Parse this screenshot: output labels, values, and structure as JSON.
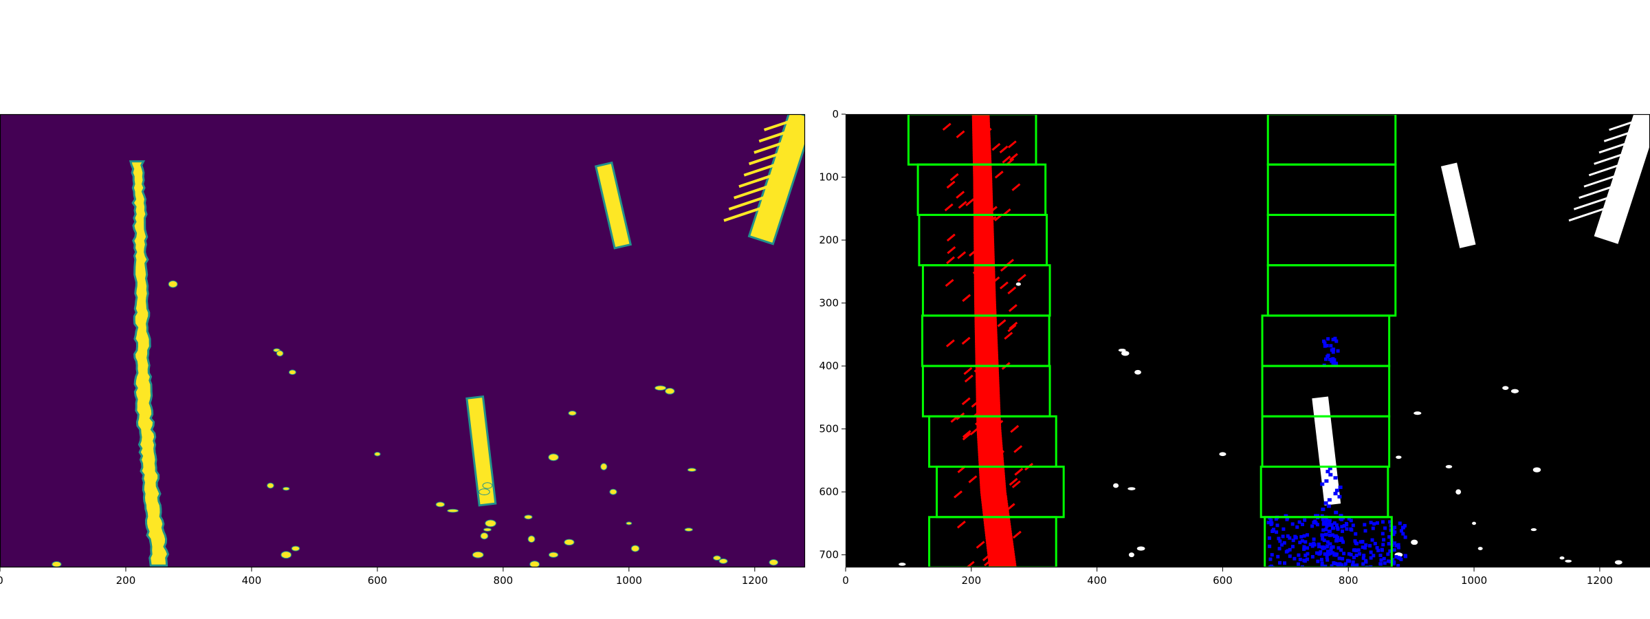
{
  "chart_data": [
    {
      "type": "heatmap",
      "description": "binary warped lane mask (viridis colormap)",
      "colormap": {
        "background": "#440154",
        "foreground": "#fde725",
        "edge": "#21918c"
      },
      "xlim": [
        0,
        1280
      ],
      "ylim": [
        720,
        0
      ],
      "x_ticks": [
        0,
        200,
        400,
        600,
        800,
        1000,
        1200
      ],
      "y_ticks": [],
      "left_lane_center_x": [
        [
          75,
          218
        ],
        [
          150,
          222
        ],
        [
          300,
          225
        ],
        [
          450,
          228
        ],
        [
          600,
          240
        ],
        [
          720,
          255
        ]
      ],
      "right_blobs": [
        {
          "type": "stripe",
          "points": [
            [
              80,
              960
            ],
            [
              210,
              990
            ]
          ]
        },
        {
          "type": "stripe",
          "points": [
            [
              450,
              755
            ],
            [
              620,
              775
            ]
          ]
        },
        {
          "type": "stripe",
          "points": [
            [
              0,
              1275
            ],
            [
              200,
              1210
            ]
          ]
        }
      ]
    },
    {
      "type": "heatmap",
      "description": "sliding window lane search: left lane pixels red, right lane pixels blue, windows green",
      "colors": {
        "background": "#000000",
        "left_pixels": "#ff0000",
        "right_pixels": "#0000ff",
        "windows": "#00ff00",
        "mask": "#ffffff"
      },
      "xlim": [
        0,
        1280
      ],
      "ylim": [
        720,
        0
      ],
      "x_ticks": [
        0,
        200,
        400,
        600,
        800,
        1000,
        1200
      ],
      "y_ticks": [
        0,
        100,
        200,
        300,
        400,
        500,
        600,
        700
      ],
      "left_windows": [
        {
          "x": [
            100,
            303
          ],
          "y": [
            0,
            80
          ]
        },
        {
          "x": [
            115,
            318
          ],
          "y": [
            80,
            160
          ]
        },
        {
          "x": [
            117,
            320
          ],
          "y": [
            160,
            240
          ]
        },
        {
          "x": [
            123,
            325
          ],
          "y": [
            240,
            320
          ]
        },
        {
          "x": [
            122,
            324
          ],
          "y": [
            320,
            400
          ]
        },
        {
          "x": [
            123,
            325
          ],
          "y": [
            400,
            480
          ]
        },
        {
          "x": [
            133,
            335
          ],
          "y": [
            480,
            560
          ]
        },
        {
          "x": [
            145,
            347
          ],
          "y": [
            560,
            640
          ]
        },
        {
          "x": [
            133,
            335
          ],
          "y": [
            640,
            720
          ]
        }
      ],
      "right_windows": [
        {
          "x": [
            672,
            875
          ],
          "y": [
            0,
            80
          ]
        },
        {
          "x": [
            672,
            875
          ],
          "y": [
            80,
            160
          ]
        },
        {
          "x": [
            672,
            875
          ],
          "y": [
            160,
            240
          ]
        },
        {
          "x": [
            672,
            875
          ],
          "y": [
            240,
            320
          ]
        },
        {
          "x": [
            663,
            865
          ],
          "y": [
            320,
            400
          ]
        },
        {
          "x": [
            663,
            865
          ],
          "y": [
            400,
            480
          ]
        },
        {
          "x": [
            663,
            865
          ],
          "y": [
            480,
            560
          ]
        },
        {
          "x": [
            661,
            863
          ],
          "y": [
            560,
            640
          ]
        },
        {
          "x": [
            667,
            869
          ],
          "y": [
            640,
            720
          ]
        }
      ],
      "left_lane_center_x": [
        [
          0,
          215
        ],
        [
          100,
          218
        ],
        [
          300,
          222
        ],
        [
          500,
          228
        ],
        [
          600,
          235
        ],
        [
          720,
          250
        ]
      ],
      "right_pixel_clusters": [
        {
          "x": 770,
          "y": 375
        },
        {
          "x": 740,
          "y": 680
        },
        {
          "x": 820,
          "y": 690
        }
      ]
    }
  ]
}
